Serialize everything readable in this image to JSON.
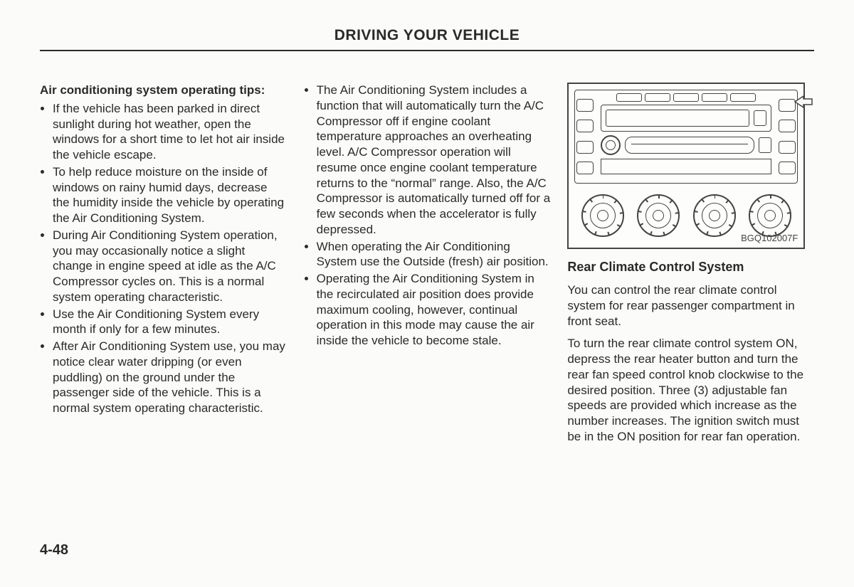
{
  "header": {
    "title": "DRIVING YOUR VEHICLE"
  },
  "col1": {
    "heading": "Air conditioning system operating tips:",
    "bullets": [
      "If the vehicle has been parked in direct sunlight during hot weather, open the windows for a short time to let hot air inside the vehicle escape.",
      "To help reduce moisture on the inside of windows on rainy humid days, decrease the humidity inside the vehicle by operating the Air Conditioning System.",
      "During Air Conditioning System operation, you may occasionally notice a slight change in engine speed at idle as the A/C Compressor cycles on. This is a normal system operating characteristic.",
      "Use the Air Conditioning System every month if only for a few minutes.",
      "After Air Conditioning System use, you may notice clear water dripping (or even puddling) on the ground under the passenger side of the vehicle. This is a normal system operating characteristic."
    ]
  },
  "col2": {
    "bullets": [
      "The Air Conditioning System includes a function that will automatically turn the A/C Compressor off if engine coolant temperature approaches an overheating level. A/C Compressor operation will resume once engine coolant temperature returns to the “normal” range. Also, the A/C Compressor is automatically turned off for a few seconds when the accelerator is fully depressed.",
      "When operating the Air Conditioning System use the Outside (fresh) air position.",
      "Operating the Air Conditioning System in the recirculated air position does provide maximum cooling, however, continual operation in this mode may cause the air inside the vehicle to become stale."
    ]
  },
  "col3": {
    "figure_code": "BGQ102007F",
    "heading": "Rear Climate Control System",
    "p1": "You can control the rear climate control system for rear passenger compartment in front seat.",
    "p2": "To turn the rear climate control system ON, depress the rear heater button and turn the rear fan speed control knob clockwise to the desired position. Three (3) adjustable fan speeds are provided which increase as the number increases. The ignition switch must be in the ON position for rear fan operation."
  },
  "diagram": {
    "border_color": "#444444",
    "background": "#fdfdfc",
    "dial_count": 4,
    "tick_angles": [
      0,
      40,
      80,
      120,
      160,
      200,
      240,
      280,
      320
    ]
  },
  "page_number": "4-48"
}
